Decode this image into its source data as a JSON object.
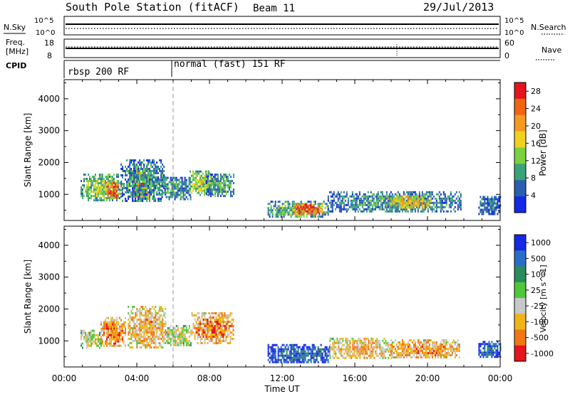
{
  "header": {
    "station": "South Pole Station (fitACF)",
    "beam": "Beam 11",
    "date": "29/Jul/2013"
  },
  "strips": {
    "nsky_label": "N.Sky",
    "nsearch_label": "N.Search",
    "noise_ticks": [
      "10^5",
      "10^0"
    ],
    "freq_label": "Freq.",
    "freq_unit": "[MHz]",
    "freq_ticks": [
      "18",
      "8"
    ],
    "nave_label": "Nave",
    "nave_ticks": [
      "60",
      "0"
    ],
    "cpid_label": "CPID",
    "cpid_segments": [
      {
        "label": "rbsp 200 RF",
        "start_hour": 0.0
      },
      {
        "label": "normal (fast) 151 RF",
        "start_hour": 6.0
      }
    ]
  },
  "chart_data": [
    {
      "type": "heatmap",
      "title": "",
      "xlabel": "Time UT",
      "ylabel": "Slant Range [km]",
      "xlim": [
        0,
        24
      ],
      "ylim": [
        180,
        4600
      ],
      "x_ticks": [
        "00:00",
        "04:00",
        "08:00",
        "12:00",
        "16:00",
        "20:00",
        "00:00"
      ],
      "y_ticks": [
        1000,
        2000,
        3000,
        4000
      ],
      "colorbar": {
        "label": "Power [dB]",
        "ticks": [
          4,
          8,
          12,
          16,
          20,
          24,
          28
        ],
        "range": [
          0,
          30
        ],
        "colors": [
          "#1428e6",
          "#2a5fb0",
          "#3aa37a",
          "#7ad23e",
          "#f0d21e",
          "#f59a1e",
          "#f06414",
          "#e6141e"
        ]
      },
      "mode_change_hour": 6.0,
      "echo_regions": [
        {
          "t0": 0.9,
          "t1": 3.2,
          "r0": 800,
          "r1": 1650,
          "level": 0.45
        },
        {
          "t0": 2.3,
          "t1": 3.0,
          "r0": 900,
          "r1": 1400,
          "level": 0.92
        },
        {
          "t0": 3.8,
          "t1": 4.6,
          "r0": 850,
          "r1": 1700,
          "level": 0.82
        },
        {
          "t0": 3.1,
          "t1": 5.6,
          "r0": 800,
          "r1": 2100,
          "level": 0.3
        },
        {
          "t0": 5.2,
          "t1": 7.0,
          "r0": 850,
          "r1": 1550,
          "level": 0.3
        },
        {
          "t0": 6.9,
          "t1": 8.2,
          "r0": 1000,
          "r1": 1750,
          "level": 0.5
        },
        {
          "t0": 7.8,
          "t1": 9.3,
          "r0": 950,
          "r1": 1650,
          "level": 0.35
        },
        {
          "t0": 11.2,
          "t1": 14.5,
          "r0": 300,
          "r1": 800,
          "level": 0.4
        },
        {
          "t0": 12.6,
          "t1": 14.2,
          "r0": 400,
          "r1": 700,
          "level": 0.88
        },
        {
          "t0": 14.5,
          "t1": 21.8,
          "r0": 450,
          "r1": 1100,
          "level": 0.3
        },
        {
          "t0": 17.8,
          "t1": 20.2,
          "r0": 600,
          "r1": 950,
          "level": 0.62
        },
        {
          "t0": 22.8,
          "t1": 24.0,
          "r0": 400,
          "r1": 950,
          "level": 0.25
        }
      ]
    },
    {
      "type": "heatmap",
      "title": "",
      "xlabel": "Time UT",
      "ylabel": "Slant Range [km]",
      "xlim": [
        0,
        24
      ],
      "ylim": [
        180,
        4600
      ],
      "x_ticks": [
        "00:00",
        "04:00",
        "08:00",
        "12:00",
        "16:00",
        "20:00",
        "00:00"
      ],
      "y_ticks": [
        1000,
        2000,
        3000,
        4000
      ],
      "colorbar": {
        "label": "Velocity [m s^-1]",
        "ticks": [
          "1000",
          "500",
          "100",
          "25",
          "-25",
          "-100",
          "-500",
          "-1000"
        ],
        "colors": [
          "#1428e6",
          "#2a6ec8",
          "#2a8c5a",
          "#4ec83a",
          "#c8c8c8",
          "#f0b414",
          "#f07814",
          "#e6141e"
        ]
      },
      "mode_change_hour": 6.0,
      "echo_regions": [
        {
          "t0": 0.9,
          "t1": 2.0,
          "r0": 800,
          "r1": 1350,
          "level": 0.6
        },
        {
          "t0": 2.0,
          "t1": 3.4,
          "r0": 850,
          "r1": 1750,
          "level": 0.8
        },
        {
          "t0": 3.5,
          "t1": 5.6,
          "r0": 800,
          "r1": 2100,
          "level": 0.72
        },
        {
          "t0": 5.6,
          "t1": 7.0,
          "r0": 850,
          "r1": 1500,
          "level": 0.6
        },
        {
          "t0": 7.0,
          "t1": 9.3,
          "r0": 950,
          "r1": 1900,
          "level": 0.78
        },
        {
          "t0": 11.2,
          "t1": 14.6,
          "r0": 300,
          "r1": 900,
          "level": 0.22
        },
        {
          "t0": 14.6,
          "t1": 18.0,
          "r0": 450,
          "r1": 1100,
          "level": 0.7
        },
        {
          "t0": 17.8,
          "t1": 21.8,
          "r0": 450,
          "r1": 1050,
          "level": 0.75
        },
        {
          "t0": 22.8,
          "t1": 24.0,
          "r0": 500,
          "r1": 1000,
          "level": 0.2
        }
      ]
    }
  ]
}
